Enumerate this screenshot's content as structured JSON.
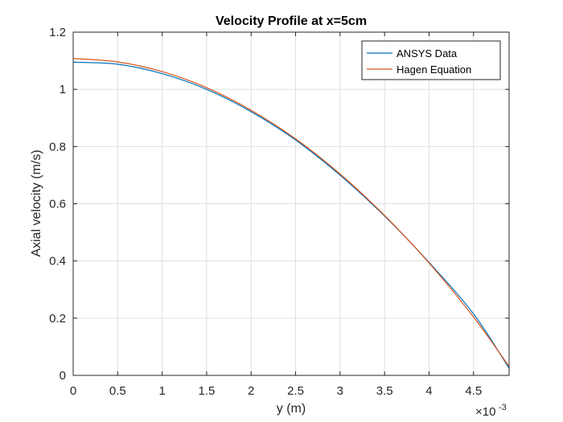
{
  "chart_data": {
    "type": "line",
    "title": "Velocity Profile at x=5cm",
    "xlabel": "y (m)",
    "ylabel": "Axial velocity (m/s)",
    "x_exponent": {
      "base": "×10",
      "power": "-3"
    },
    "xlim": [
      0,
      0.0049
    ],
    "ylim": [
      0,
      1.2
    ],
    "xticks": [
      0,
      0.0005,
      0.001,
      0.0015,
      0.002,
      0.0025,
      0.003,
      0.0035,
      0.004,
      0.0045
    ],
    "xtick_labels": [
      "0",
      "0.5",
      "1",
      "1.5",
      "2",
      "2.5",
      "3",
      "3.5",
      "4",
      "4.5"
    ],
    "yticks": [
      0,
      0.2,
      0.4,
      0.6,
      0.8,
      1.0,
      1.2
    ],
    "ytick_labels": [
      "0",
      "0.2",
      "0.4",
      "0.6",
      "0.8",
      "1",
      "1.2"
    ],
    "grid": true,
    "legend": "top-right",
    "series": [
      {
        "name": "ANSYS Data",
        "color": "#0072BD",
        "x": [
          0,
          0.0005,
          0.001,
          0.0015,
          0.002,
          0.0025,
          0.003,
          0.0035,
          0.004,
          0.0045,
          0.0049
        ],
        "y": [
          1.095,
          1.088,
          1.055,
          1.0,
          0.922,
          0.823,
          0.7,
          0.557,
          0.395,
          0.215,
          0.025
        ]
      },
      {
        "name": "Hagen Equation",
        "color": "#D95319",
        "x": [
          0,
          0.0005,
          0.001,
          0.0015,
          0.002,
          0.0025,
          0.003,
          0.0035,
          0.004,
          0.0045,
          0.0049
        ],
        "y": [
          1.108,
          1.096,
          1.062,
          1.006,
          0.927,
          0.827,
          0.704,
          0.559,
          0.393,
          0.204,
          0.031
        ]
      }
    ]
  }
}
